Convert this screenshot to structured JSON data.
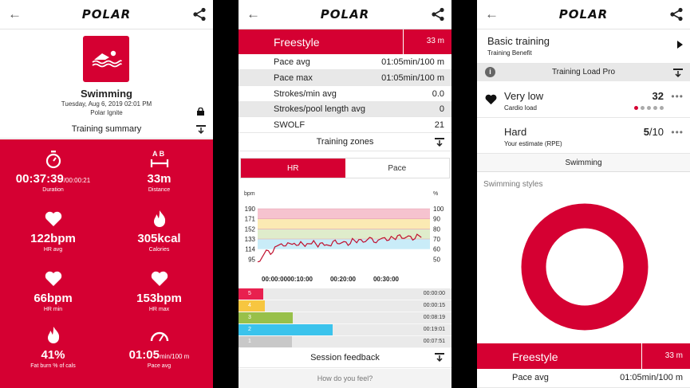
{
  "brand": "POLAR",
  "colors": {
    "accent": "#d50032",
    "zone5": "#e8204f",
    "zone4": "#f7c640",
    "zone3": "#98c04a",
    "zone2": "#3bc3ec",
    "zone1": "#c8c8c8"
  },
  "screen1": {
    "sport_name": "Swimming",
    "date": "Tuesday, Aug 6, 2019 02:01 PM",
    "device": "Polar Ignite",
    "summary_label": "Training summary",
    "stats": [
      {
        "icon": "stopwatch-icon",
        "value": "00:37:39",
        "unit": "/00:00:21",
        "label": "Duration"
      },
      {
        "icon": "distance-icon",
        "value": "33m",
        "unit": "",
        "label": "Distance"
      },
      {
        "icon": "heart-icon",
        "value": "122bpm",
        "unit": "",
        "label": "HR avg"
      },
      {
        "icon": "flame-icon",
        "value": "305kcal",
        "unit": "",
        "label": "Calories"
      },
      {
        "icon": "heart-icon",
        "value": "66bpm",
        "unit": "",
        "label": "HR min"
      },
      {
        "icon": "heart-icon",
        "value": "153bpm",
        "unit": "",
        "label": "HR max"
      },
      {
        "icon": "flame-icon",
        "value": "41%",
        "unit": "",
        "label": "Fat burn % of cals"
      },
      {
        "icon": "gauge-icon",
        "value": "01:05",
        "unit": "min/100 m",
        "label": "Pace avg"
      }
    ],
    "distance_icon_text": "A  B"
  },
  "screen2": {
    "style_name": "Freestyle",
    "style_duration": "33 m",
    "rows": [
      {
        "label": "Pace avg",
        "value": "01:05min/100 m"
      },
      {
        "label": "Pace max",
        "value": "01:05min/100 m"
      },
      {
        "label": "Strokes/min avg",
        "value": "0.0"
      },
      {
        "label": "Strokes/pool length avg",
        "value": "0"
      },
      {
        "label": "SWOLF",
        "value": "21"
      }
    ],
    "zones_label": "Training zones",
    "tab_hr": "HR",
    "tab_pace": "Pace",
    "session_feedback": "Session feedback",
    "how_feel": "How do you feel?"
  },
  "chart_data": {
    "type": "line",
    "title": "",
    "xlabel": "",
    "ylabel": "bpm",
    "y2label": "%",
    "y_ticks": [
      190,
      171,
      152,
      133,
      114,
      95
    ],
    "y2_ticks": [
      100,
      90,
      80,
      70,
      60,
      50
    ],
    "x_ticks": [
      "00:00:00",
      "00:10:00",
      "00:20:00",
      "00:30:00"
    ],
    "ylim": [
      88,
      190
    ],
    "x_minutes_range": [
      0,
      40
    ],
    "grid": false,
    "bands": [
      {
        "zone": 5,
        "from": 171,
        "to": 190,
        "color": "#f6c3cf"
      },
      {
        "zone": 4,
        "from": 152,
        "to": 171,
        "color": "#fbeab3"
      },
      {
        "zone": 3,
        "from": 133,
        "to": 152,
        "color": "#dfeccb"
      },
      {
        "zone": 2,
        "from": 114,
        "to": 133,
        "color": "#c9ecf8"
      }
    ],
    "series": [
      {
        "values_x_min": [
          0,
          1,
          2,
          3,
          4,
          5,
          6,
          7,
          8,
          9,
          10,
          11,
          12,
          13,
          14,
          15,
          16,
          17,
          18,
          19,
          20,
          21,
          22,
          23,
          24,
          25,
          26,
          27,
          28,
          29,
          30,
          31,
          32,
          33,
          34,
          35,
          36,
          37,
          38
        ],
        "values": [
          90,
          98,
          112,
          104,
          118,
          122,
          120,
          126,
          123,
          121,
          128,
          119,
          124,
          130,
          118,
          126,
          122,
          120,
          131,
          124,
          128,
          121,
          134,
          126,
          132,
          128,
          136,
          127,
          131,
          135,
          130,
          138,
          132,
          141,
          134,
          139,
          131,
          142,
          136
        ],
        "color": "#c0102e"
      }
    ]
  },
  "zone_bars": [
    {
      "zone": "5",
      "fraction": 0.0,
      "time": "00:00:00"
    },
    {
      "zone": "4",
      "fraction": 0.01,
      "time": "00:00:15"
    },
    {
      "zone": "3",
      "fraction": 0.22,
      "time": "00:08:19"
    },
    {
      "zone": "2",
      "fraction": 0.51,
      "time": "00:19:01"
    },
    {
      "zone": "1",
      "fraction": 0.21,
      "time": "00:07:51"
    }
  ],
  "screen3": {
    "benefit_title": "Basic training",
    "benefit_sub": "Training Benefit",
    "tlp_label": "Training Load Pro",
    "cardio_level": "Very low",
    "cardio_sub": "Cardio load",
    "cardio_value": "32",
    "cardio_dots": 1,
    "rpe_level": "Hard",
    "rpe_sub": "Your estimate (RPE)",
    "rpe_value": "5",
    "rpe_max": "/10",
    "swim_btn": "Swimming",
    "styles_label": "Swimming styles",
    "donut_share": 1.0,
    "bottom_style": "Freestyle",
    "bottom_duration": "33 m",
    "bottom_row_label": "Pace avg",
    "bottom_row_value": "01:05min/100 m"
  }
}
